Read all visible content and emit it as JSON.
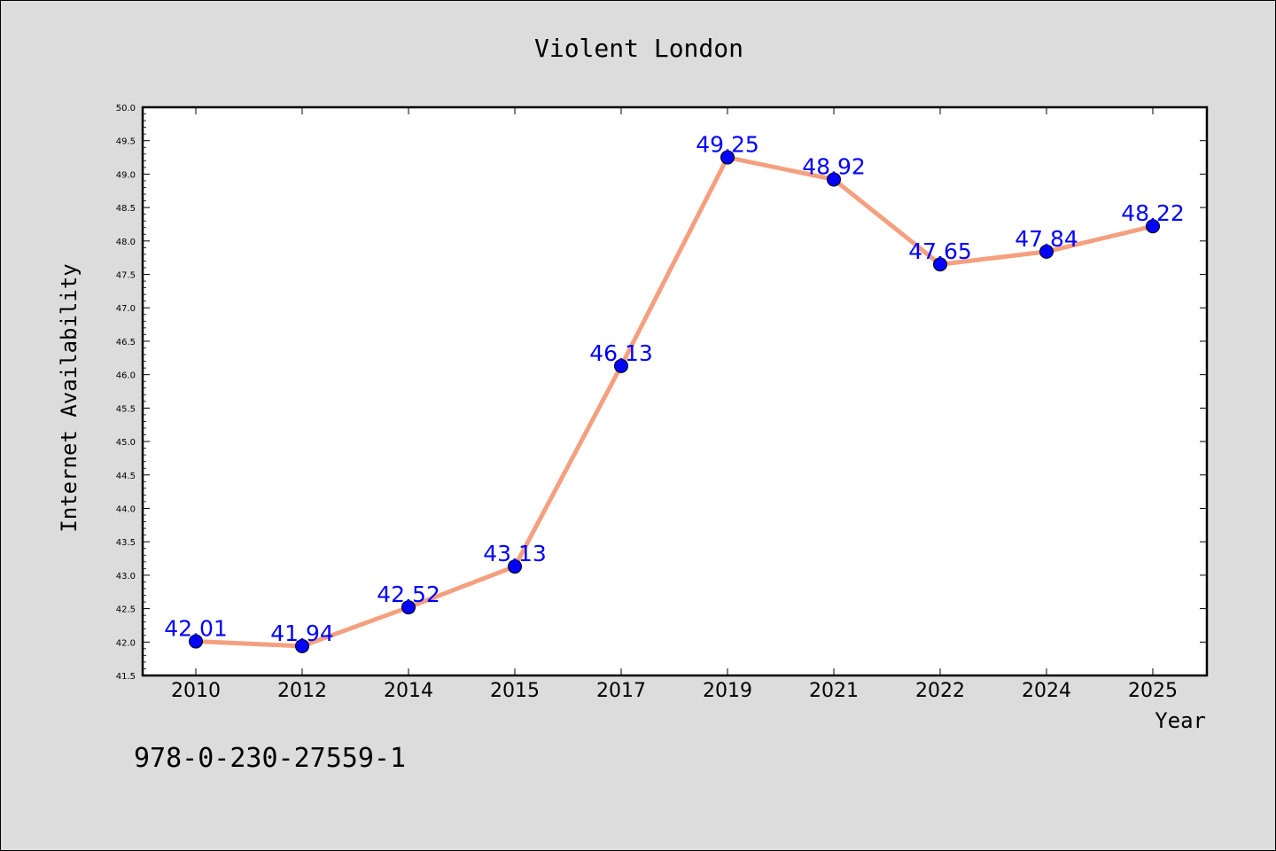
{
  "chart_data": {
    "type": "line",
    "title": "Violent London",
    "xlabel": "Year",
    "ylabel": "Internet Availability",
    "categories": [
      "2010",
      "2012",
      "2014",
      "2015",
      "2017",
      "2019",
      "2021",
      "2022",
      "2024",
      "2025"
    ],
    "series": [
      {
        "values": [
          42.01,
          41.94,
          42.52,
          43.13,
          46.13,
          49.25,
          48.92,
          47.65,
          47.84,
          48.22
        ],
        "labels": [
          "42.01",
          "41.94",
          "42.52",
          "43.13",
          "46.13",
          "49.25",
          "48.92",
          "47.65",
          "47.84",
          "48.22"
        ],
        "line_color": "#f4a07f",
        "marker_color": "#0000ff"
      }
    ],
    "ylim": [
      41.5,
      50.0
    ],
    "yticks": [
      "41.5",
      "42.0",
      "42.5",
      "43.0",
      "43.5",
      "44.0",
      "44.5",
      "45.0",
      "45.5",
      "46.0",
      "46.5",
      "47.0",
      "47.5",
      "48.0",
      "48.5",
      "49.0",
      "49.5",
      "50.0"
    ],
    "grid": false,
    "legend": "none"
  },
  "footer": {
    "code": "978-0-230-27559-1"
  },
  "colors": {
    "figure_bg": "#dcdcdc",
    "plot_bg": "#ffffff"
  }
}
